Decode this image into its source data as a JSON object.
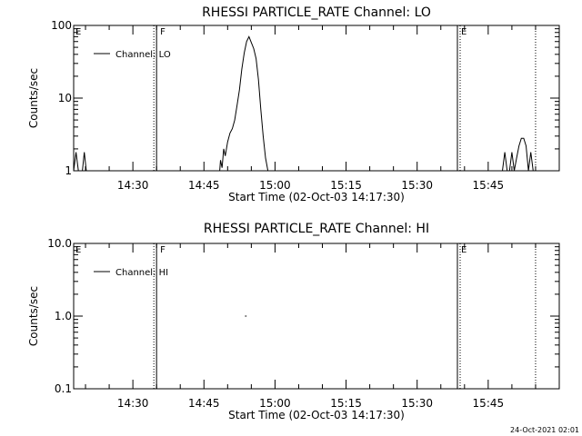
{
  "chart_data": [
    {
      "type": "line",
      "title": "RHESSI PARTICLE_RATE Channel: LO",
      "xlabel": "Start Time (02-Oct-03 14:17:30)",
      "ylabel": "Counts/sec",
      "y_scale": "log",
      "ylim": [
        1,
        100
      ],
      "y_ticks": [
        {
          "value": 1,
          "label": "1"
        },
        {
          "value": 10,
          "label": "10"
        },
        {
          "value": 100,
          "label": "100"
        }
      ],
      "xlim": [
        "14:17:30",
        "16:00:00"
      ],
      "x_ticks": [
        "14:30",
        "14:45",
        "15:00",
        "15:15",
        "15:30",
        "15:45"
      ],
      "legend": {
        "placement": "top-left",
        "entries": [
          "Channel: LO"
        ]
      },
      "series": [
        {
          "name": "Channel: LO",
          "points": [
            [
              "14:17:30",
              1.0
            ],
            [
              "14:18:00",
              1.8
            ],
            [
              "14:18:30",
              1.0
            ],
            [
              "14:19:20",
              1.0
            ],
            [
              "14:19:45",
              1.8
            ],
            [
              "14:20:10",
              1.0
            ],
            [
              "14:48:20",
              1.0
            ],
            [
              "14:48:30",
              1.4
            ],
            [
              "14:48:50",
              1.1
            ],
            [
              "14:49:10",
              2.0
            ],
            [
              "14:49:30",
              1.6
            ],
            [
              "14:50:00",
              2.5
            ],
            [
              "14:50:30",
              3.3
            ],
            [
              "14:51:00",
              3.8
            ],
            [
              "14:51:30",
              5.0
            ],
            [
              "14:52:00",
              8.0
            ],
            [
              "14:52:30",
              13.0
            ],
            [
              "14:53:00",
              25.0
            ],
            [
              "14:53:30",
              42.0
            ],
            [
              "14:54:00",
              60.0
            ],
            [
              "14:54:30",
              70.0
            ],
            [
              "14:55:00",
              58.0
            ],
            [
              "14:55:30",
              48.0
            ],
            [
              "14:56:00",
              35.0
            ],
            [
              "14:56:30",
              18.0
            ],
            [
              "14:57:00",
              7.0
            ],
            [
              "14:57:30",
              3.0
            ],
            [
              "14:58:00",
              1.5
            ],
            [
              "14:58:30",
              1.0
            ],
            [
              "15:48:00",
              1.0
            ],
            [
              "15:48:30",
              1.8
            ],
            [
              "15:49:00",
              1.0
            ],
            [
              "15:49:30",
              1.0
            ],
            [
              "15:50:00",
              1.8
            ],
            [
              "15:50:30",
              1.0
            ],
            [
              "15:51:00",
              1.5
            ],
            [
              "15:51:30",
              2.2
            ],
            [
              "15:52:00",
              2.8
            ],
            [
              "15:52:30",
              2.8
            ],
            [
              "15:53:00",
              2.2
            ],
            [
              "15:53:30",
              1.0
            ],
            [
              "15:54:00",
              1.8
            ],
            [
              "15:54:30",
              1.0
            ]
          ]
        }
      ],
      "markers": [
        {
          "label": "E",
          "time": "14:17:30",
          "style": "none"
        },
        {
          "label": "F",
          "time": "14:35:00",
          "style": "dotted+solid"
        },
        {
          "label": "E",
          "time": "15:38:30",
          "style": "solid+dotted"
        },
        {
          "label": "",
          "time": "15:55:00",
          "style": "dotted"
        }
      ]
    },
    {
      "type": "line",
      "title": "RHESSI PARTICLE_RATE Channel: HI",
      "xlabel": "Start Time (02-Oct-03 14:17:30)",
      "ylabel": "Counts/sec",
      "y_scale": "log",
      "ylim": [
        0.1,
        10
      ],
      "y_ticks": [
        {
          "value": 0.1,
          "label": "0.1"
        },
        {
          "value": 1,
          "label": "1.0"
        },
        {
          "value": 10,
          "label": "10.0"
        }
      ],
      "xlim": [
        "14:17:30",
        "16:00:00"
      ],
      "x_ticks": [
        "14:30",
        "14:45",
        "15:00",
        "15:15",
        "15:30",
        "15:45"
      ],
      "legend": {
        "placement": "top-left",
        "entries": [
          "Channel: HI"
        ]
      },
      "series": [
        {
          "name": "Channel: HI",
          "points": [
            [
              "14:53:40",
              1.0
            ],
            [
              "14:54:00",
              1.0
            ]
          ]
        }
      ],
      "markers": [
        {
          "label": "E",
          "time": "14:17:30",
          "style": "none"
        },
        {
          "label": "F",
          "time": "14:35:00",
          "style": "dotted+solid"
        },
        {
          "label": "E",
          "time": "15:38:30",
          "style": "solid+dotted"
        },
        {
          "label": "",
          "time": "15:55:00",
          "style": "dotted"
        }
      ]
    }
  ],
  "footer": {
    "timestamp": "24-Oct-2021 02:01"
  }
}
